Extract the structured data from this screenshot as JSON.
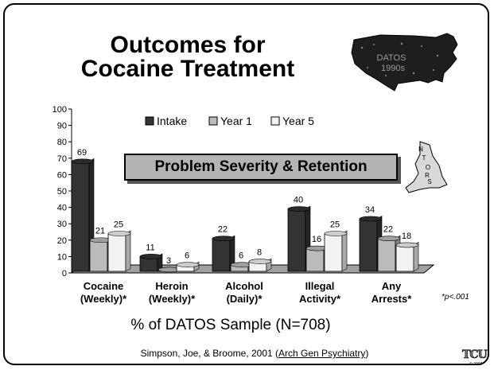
{
  "slide": {
    "title_line1": "Outcomes for",
    "title_line2": "Cocaine Treatment",
    "map_label_line1": "DATOS",
    "map_label_line2": "1990s",
    "banner": "Problem Severity & Retention",
    "ntors_letters": [
      "N",
      "T",
      "O",
      "R",
      "S"
    ],
    "pvalue_note": "*p<.001",
    "xaxis_title": "% of DATOS Sample (N=708)",
    "citation_prefix": "Simpson, Joe, & Broome, 2001 (",
    "citation_journal": "Arch Gen Psychiatry",
    "citation_suffix": ")",
    "logo_text": "TCU",
    "logo_year": "© 2007"
  },
  "chart_data": {
    "type": "bar",
    "categories": [
      [
        "Cocaine",
        "(Weekly)*"
      ],
      [
        "Heroin",
        "(Weekly)*"
      ],
      [
        "Alcohol",
        "(Daily)*"
      ],
      [
        "Illegal",
        "Activity*"
      ],
      [
        "Any",
        "Arrests*"
      ]
    ],
    "series": [
      {
        "name": "Intake",
        "color": "#333333",
        "values": [
          69,
          11,
          22,
          40,
          34
        ]
      },
      {
        "name": "Year 1",
        "color": "#bbbbbb",
        "values": [
          21,
          3,
          6,
          16,
          22
        ]
      },
      {
        "name": "Year 5",
        "color": "#f2f2f2",
        "values": [
          25,
          6,
          8,
          25,
          18
        ]
      }
    ],
    "ylim": [
      0,
      100
    ],
    "yticks": [
      0,
      10,
      20,
      30,
      40,
      50,
      60,
      70,
      80,
      90,
      100
    ],
    "grid": false,
    "legend_position": "top"
  }
}
